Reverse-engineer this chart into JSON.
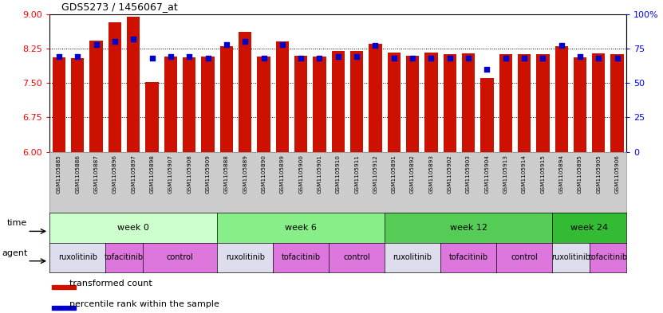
{
  "title": "GDS5273 / 1456067_at",
  "samples": [
    "GSM1105885",
    "GSM1105886",
    "GSM1105887",
    "GSM1105896",
    "GSM1105897",
    "GSM1105898",
    "GSM1105907",
    "GSM1105908",
    "GSM1105909",
    "GSM1105888",
    "GSM1105889",
    "GSM1105890",
    "GSM1105899",
    "GSM1105900",
    "GSM1105901",
    "GSM1105910",
    "GSM1105911",
    "GSM1105912",
    "GSM1105891",
    "GSM1105892",
    "GSM1105893",
    "GSM1105902",
    "GSM1105903",
    "GSM1105904",
    "GSM1105913",
    "GSM1105914",
    "GSM1105915",
    "GSM1105894",
    "GSM1105895",
    "GSM1105905",
    "GSM1105906"
  ],
  "bar_values": [
    8.05,
    8.04,
    8.42,
    8.82,
    8.95,
    7.52,
    8.07,
    8.05,
    8.08,
    8.3,
    8.62,
    8.08,
    8.41,
    8.1,
    8.08,
    8.19,
    8.19,
    8.35,
    8.17,
    8.1,
    8.17,
    8.13,
    8.14,
    7.6,
    8.12,
    8.12,
    8.13,
    8.3,
    8.05,
    8.14,
    8.12
  ],
  "dot_values": [
    69,
    69,
    78,
    80,
    82,
    68,
    69,
    69,
    68,
    78,
    80,
    68,
    78,
    68,
    68,
    69,
    69,
    77,
    68,
    68,
    68,
    68,
    68,
    60,
    68,
    68,
    68,
    77,
    69,
    68,
    68
  ],
  "bar_color": "#CC1100",
  "dot_color": "#0000CC",
  "ylim_left": [
    6,
    9
  ],
  "ylim_right": [
    0,
    100
  ],
  "yticks_left": [
    6,
    6.75,
    7.5,
    8.25,
    9
  ],
  "yticks_right": [
    0,
    25,
    50,
    75,
    100
  ],
  "grid_lines": [
    6.75,
    7.5,
    8.25
  ],
  "time_groups": [
    {
      "label": "week 0",
      "start": 0,
      "end": 9,
      "color": "#CCFFCC"
    },
    {
      "label": "week 6",
      "start": 9,
      "end": 18,
      "color": "#88EE88"
    },
    {
      "label": "week 12",
      "start": 18,
      "end": 27,
      "color": "#55CC55"
    },
    {
      "label": "week 24",
      "start": 27,
      "end": 31,
      "color": "#33BB33"
    }
  ],
  "agent_groups": [
    {
      "label": "ruxolitinib",
      "start": 0,
      "end": 3,
      "color": "#DDDDFF"
    },
    {
      "label": "tofacitinib",
      "start": 3,
      "end": 5,
      "color": "#EE88EE"
    },
    {
      "label": "control",
      "start": 5,
      "end": 9,
      "color": "#EE88EE"
    },
    {
      "label": "ruxolitinib",
      "start": 9,
      "end": 12,
      "color": "#DDDDFF"
    },
    {
      "label": "tofacitinib",
      "start": 12,
      "end": 15,
      "color": "#EE88EE"
    },
    {
      "label": "control",
      "start": 15,
      "end": 18,
      "color": "#EE88EE"
    },
    {
      "label": "ruxolitinib",
      "start": 18,
      "end": 21,
      "color": "#DDDDFF"
    },
    {
      "label": "tofacitinib",
      "start": 21,
      "end": 24,
      "color": "#EE88EE"
    },
    {
      "label": "control",
      "start": 24,
      "end": 27,
      "color": "#EE88EE"
    },
    {
      "label": "ruxolitinib",
      "start": 27,
      "end": 29,
      "color": "#DDDDFF"
    },
    {
      "label": "tofacitinib",
      "start": 29,
      "end": 31,
      "color": "#EE88EE"
    }
  ],
  "legend_bar_label": "transformed count",
  "legend_dot_label": "percentile rank within the sample",
  "tick_bg_color": "#CCCCCC",
  "background_color": "#FFFFFF"
}
